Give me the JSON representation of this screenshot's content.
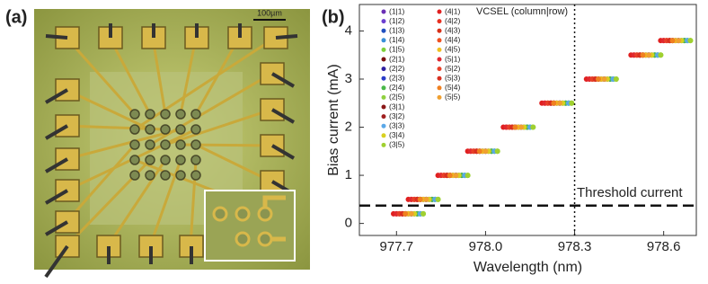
{
  "figure": {
    "panel_a_label": "(a)",
    "panel_b_label": "(b)",
    "scale_bar": "100µm"
  },
  "chart_data": {
    "type": "scatter",
    "x_label": "Wavelength (nm)",
    "y_label": "Bias current (mA)",
    "legend_title": "VCSEL (column|row)",
    "annotation": "Threshold current",
    "hline": 0.37,
    "vline": 978.3,
    "xlim": [
      977.575,
      978.71
    ],
    "ylim": [
      -0.25,
      4.55
    ],
    "xticks": [
      977.7,
      {
        "value": 978,
        "label": "978.0"
      },
      978.3,
      978.6
    ],
    "yticks": [
      0,
      1,
      2,
      3,
      4
    ],
    "series": [
      {
        "name": "(1|1)",
        "color": "#6a2fb5",
        "x": [
          977.75,
          977.8,
          977.9,
          978.0,
          978.12,
          978.25,
          978.4,
          978.55,
          978.65
        ],
        "values": [
          0.2,
          0.5,
          1,
          1.5,
          2,
          2.5,
          3,
          3.5,
          3.8
        ]
      },
      {
        "name": "(1|2)",
        "color": "#6b3fd0",
        "x": [
          977.76,
          977.81,
          977.91,
          978.01,
          978.13,
          978.26,
          978.41,
          978.56,
          978.66
        ],
        "values": [
          0.2,
          0.5,
          1,
          1.5,
          2,
          2.5,
          3,
          3.5,
          3.8
        ]
      },
      {
        "name": "(1|3)",
        "color": "#2050c0",
        "x": [
          977.77,
          977.82,
          977.92,
          978.02,
          978.14,
          978.27,
          978.42,
          978.57,
          978.67
        ],
        "values": [
          0.2,
          0.5,
          1,
          1.5,
          2,
          2.5,
          3,
          3.5,
          3.8
        ]
      },
      {
        "name": "(1|4)",
        "color": "#3a8fd8",
        "x": [
          977.78,
          977.83,
          977.93,
          978.03,
          978.15,
          978.28,
          978.43,
          978.58,
          978.68
        ],
        "values": [
          0.2,
          0.5,
          1,
          1.5,
          2,
          2.5,
          3,
          3.5,
          3.8
        ]
      },
      {
        "name": "(1|5)",
        "color": "#7ed03a",
        "x": [
          977.79,
          977.84,
          977.94,
          978.04,
          978.16,
          978.29,
          978.44,
          978.59,
          978.69
        ],
        "values": [
          0.2,
          0.5,
          1,
          1.5,
          2,
          2.5,
          3,
          3.5,
          3.8
        ]
      },
      {
        "name": "(2|1)",
        "color": "#7a1010",
        "x": [
          977.73,
          977.78,
          977.88,
          977.98,
          978.1,
          978.23,
          978.38,
          978.53,
          978.63
        ],
        "values": [
          0.2,
          0.5,
          1,
          1.5,
          2,
          2.5,
          3,
          3.5,
          3.8
        ]
      },
      {
        "name": "(2|2)",
        "color": "#3020a0",
        "x": [
          977.74,
          977.79,
          977.89,
          977.99,
          978.11,
          978.24,
          978.39,
          978.54,
          978.64
        ],
        "values": [
          0.2,
          0.5,
          1,
          1.5,
          2,
          2.5,
          3,
          3.5,
          3.8
        ]
      },
      {
        "name": "(2|3)",
        "color": "#2a3cc8",
        "x": [
          977.75,
          977.8,
          977.9,
          978.0,
          978.12,
          978.25,
          978.4,
          978.55,
          978.65
        ],
        "values": [
          0.2,
          0.5,
          1,
          1.5,
          2,
          2.5,
          3,
          3.5,
          3.8
        ]
      },
      {
        "name": "(2|4)",
        "color": "#4ab84a",
        "x": [
          977.77,
          977.82,
          977.92,
          978.02,
          978.14,
          978.27,
          978.42,
          978.57,
          978.67
        ],
        "values": [
          0.2,
          0.5,
          1,
          1.5,
          2,
          2.5,
          3,
          3.5,
          3.8
        ]
      },
      {
        "name": "(2|5)",
        "color": "#90d040",
        "x": [
          977.78,
          977.83,
          977.93,
          978.03,
          978.15,
          978.28,
          978.43,
          978.58,
          978.68
        ],
        "values": [
          0.2,
          0.5,
          1,
          1.5,
          2,
          2.5,
          3,
          3.5,
          3.8
        ]
      },
      {
        "name": "(3|1)",
        "color": "#8a1818",
        "x": [
          977.72,
          977.77,
          977.87,
          977.97,
          978.09,
          978.22,
          978.37,
          978.52,
          978.62
        ],
        "values": [
          0.2,
          0.5,
          1,
          1.5,
          2,
          2.5,
          3,
          3.5,
          3.8
        ]
      },
      {
        "name": "(3|2)",
        "color": "#a02020",
        "x": [
          977.73,
          977.78,
          977.88,
          977.98,
          978.1,
          978.23,
          978.38,
          978.53,
          978.63
        ],
        "values": [
          0.2,
          0.5,
          1,
          1.5,
          2,
          2.5,
          3,
          3.5,
          3.8
        ]
      },
      {
        "name": "(3|3)",
        "color": "#5aa8e8",
        "x": [
          977.78,
          977.83,
          977.93,
          978.03,
          978.15,
          978.28,
          978.43,
          978.58,
          978.68
        ],
        "values": [
          0.2,
          0.5,
          1,
          1.5,
          2,
          2.5,
          3,
          3.5,
          3.8
        ]
      },
      {
        "name": "(3|4)",
        "color": "#d8d020",
        "x": [
          977.76,
          977.81,
          977.91,
          978.01,
          978.13,
          978.26,
          978.41,
          978.56,
          978.66
        ],
        "values": [
          0.2,
          0.5,
          1,
          1.5,
          2,
          2.5,
          3,
          3.5,
          3.8
        ]
      },
      {
        "name": "(3|5)",
        "color": "#a0d030",
        "x": [
          977.79,
          977.84,
          977.94,
          978.04,
          978.16,
          978.29,
          978.44,
          978.59,
          978.69
        ],
        "values": [
          0.2,
          0.5,
          1,
          1.5,
          2,
          2.5,
          3,
          3.5,
          3.8
        ]
      },
      {
        "name": "(4|1)",
        "color": "#e02020",
        "x": [
          977.69,
          977.74,
          977.84,
          977.94,
          978.06,
          978.19,
          978.34,
          978.49,
          978.59
        ],
        "values": [
          0.2,
          0.5,
          1,
          1.5,
          2,
          2.5,
          3,
          3.5,
          3.8
        ]
      },
      {
        "name": "(4|2)",
        "color": "#e83020",
        "x": [
          977.7,
          977.75,
          977.85,
          977.95,
          978.07,
          978.2,
          978.35,
          978.5,
          978.6
        ],
        "values": [
          0.2,
          0.5,
          1,
          1.5,
          2,
          2.5,
          3,
          3.5,
          3.8
        ]
      },
      {
        "name": "(4|3)",
        "color": "#d83018",
        "x": [
          977.71,
          977.76,
          977.86,
          977.96,
          978.08,
          978.21,
          978.36,
          978.51,
          978.61
        ],
        "values": [
          0.2,
          0.5,
          1,
          1.5,
          2,
          2.5,
          3,
          3.5,
          3.8
        ]
      },
      {
        "name": "(4|4)",
        "color": "#f05020",
        "x": [
          977.72,
          977.77,
          977.87,
          977.97,
          978.09,
          978.22,
          978.37,
          978.52,
          978.62
        ],
        "values": [
          0.2,
          0.5,
          1,
          1.5,
          2,
          2.5,
          3,
          3.5,
          3.8
        ]
      },
      {
        "name": "(4|5)",
        "color": "#f0c020",
        "x": [
          977.74,
          977.79,
          977.89,
          977.99,
          978.11,
          978.24,
          978.39,
          978.54,
          978.64
        ],
        "values": [
          0.2,
          0.5,
          1,
          1.5,
          2,
          2.5,
          3,
          3.5,
          3.8
        ]
      },
      {
        "name": "(5|1)",
        "color": "#e02830",
        "x": [
          977.7,
          977.75,
          977.85,
          977.95,
          978.07,
          978.2,
          978.35,
          978.5,
          978.6
        ],
        "values": [
          0.2,
          0.5,
          1,
          1.5,
          2,
          2.5,
          3,
          3.5,
          3.8
        ]
      },
      {
        "name": "(5|2)",
        "color": "#e84028",
        "x": [
          977.71,
          977.76,
          977.86,
          977.96,
          978.08,
          978.21,
          978.36,
          978.51,
          978.61
        ],
        "values": [
          0.2,
          0.5,
          1,
          1.5,
          2,
          2.5,
          3,
          3.5,
          3.8
        ]
      },
      {
        "name": "(5|3)",
        "color": "#d83020",
        "x": [
          977.72,
          977.77,
          977.87,
          977.97,
          978.09,
          978.22,
          978.37,
          978.52,
          978.62
        ],
        "values": [
          0.2,
          0.5,
          1,
          1.5,
          2,
          2.5,
          3,
          3.5,
          3.8
        ]
      },
      {
        "name": "(5|4)",
        "color": "#f08020",
        "x": [
          977.73,
          977.78,
          977.88,
          977.98,
          978.1,
          978.23,
          978.38,
          978.53,
          978.63
        ],
        "values": [
          0.2,
          0.5,
          1,
          1.5,
          2,
          2.5,
          3,
          3.5,
          3.8
        ]
      },
      {
        "name": "(5|5)",
        "color": "#f0a030",
        "x": [
          977.75,
          977.8,
          977.9,
          978.0,
          978.12,
          978.25,
          978.4,
          978.55,
          978.65
        ],
        "values": [
          0.2,
          0.5,
          1,
          1.5,
          2,
          2.5,
          3,
          3.5,
          3.8
        ]
      }
    ]
  }
}
